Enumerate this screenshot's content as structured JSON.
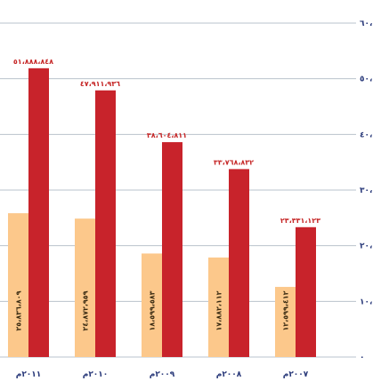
{
  "chart_data": {
    "type": "bar",
    "categories": [
      "٢٠١١م",
      "٢٠١٠م",
      "٢٠٠٩م",
      "٢٠٠٨م",
      "٢٠٠٧م"
    ],
    "series": [
      {
        "color": "#fcc88b",
        "values": [
          25836809,
          24872959,
          18599583,
          17882112,
          12599412
        ],
        "labels": [
          "٢٥،٨٣٦،٨٠٩",
          "٢٤،٨٧٢،٩٥٩",
          "١٨،٥٩٩،٥٨٣",
          "١٧،٨٨٢،١١٢",
          "١٢،٥٩٩،٤١٢"
        ]
      },
      {
        "color": "#c8232b",
        "values": [
          51888848,
          47911936,
          38604811,
          33768832,
          23331123
        ],
        "labels": [
          "٥١،٨٨٨،٨٤٨",
          "٤٧،٩١١،٩٣٦",
          "٣٨،٦٠٤،٨١١",
          "٣٣،٧٦٨،٨٣٢",
          "٢٣،٣٣١،١٢٣"
        ]
      }
    ],
    "yticks": [
      "٦٠،",
      "٥٠،",
      "٤٠،",
      "٣٠،",
      "٢٠،",
      "١٠،",
      "٠"
    ],
    "ylim": [
      0,
      60000000
    ],
    "grid": true,
    "axis_color": "#2a3a7a",
    "grid_color": "#b9c3cc"
  }
}
